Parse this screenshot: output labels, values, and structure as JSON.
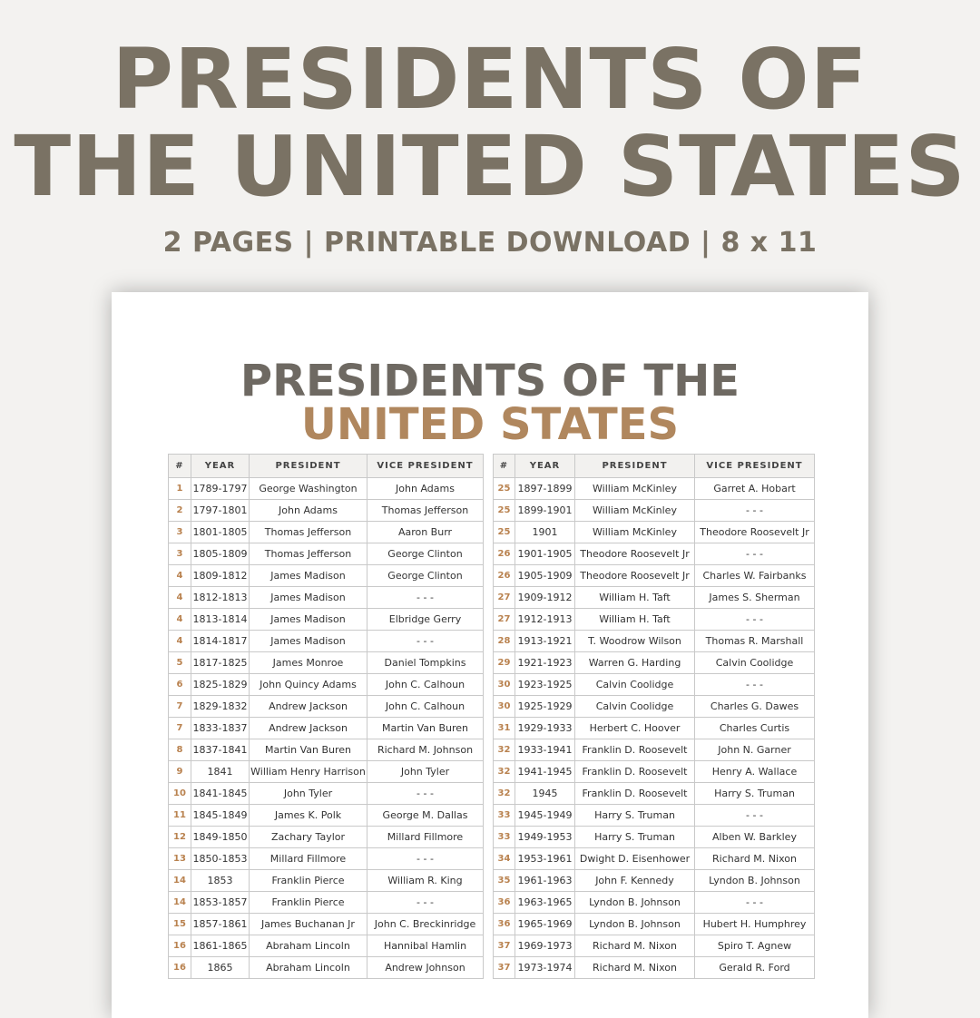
{
  "header": {
    "title_line1": "PRESIDENTS OF",
    "title_line2": "THE UNITED STATES",
    "subtitle": "2 PAGES | PRINTABLE DOWNLOAD | 8 x 11"
  },
  "document": {
    "title_line1": "PRESIDENTS OF THE",
    "title_line2": "UNITED STATES",
    "tables": [
      {
        "columns": [
          "#",
          "YEAR",
          "PRESIDENT",
          "VICE PRESIDENT"
        ],
        "rows": [
          [
            "1",
            "1789-1797",
            "George Washington",
            "John Adams"
          ],
          [
            "2",
            "1797-1801",
            "John Adams",
            "Thomas Jefferson"
          ],
          [
            "3",
            "1801-1805",
            "Thomas Jefferson",
            "Aaron Burr"
          ],
          [
            "3",
            "1805-1809",
            "Thomas Jefferson",
            "George Clinton"
          ],
          [
            "4",
            "1809-1812",
            "James Madison",
            "George Clinton"
          ],
          [
            "4",
            "1812-1813",
            "James Madison",
            "- - -"
          ],
          [
            "4",
            "1813-1814",
            "James Madison",
            "Elbridge Gerry"
          ],
          [
            "4",
            "1814-1817",
            "James Madison",
            "- - -"
          ],
          [
            "5",
            "1817-1825",
            "James Monroe",
            "Daniel Tompkins"
          ],
          [
            "6",
            "1825-1829",
            "John Quincy Adams",
            "John C. Calhoun"
          ],
          [
            "7",
            "1829-1832",
            "Andrew Jackson",
            "John C. Calhoun"
          ],
          [
            "7",
            "1833-1837",
            "Andrew Jackson",
            "Martin Van Buren"
          ],
          [
            "8",
            "1837-1841",
            "Martin Van Buren",
            "Richard M. Johnson"
          ],
          [
            "9",
            "1841",
            "William Henry Harrison",
            "John Tyler"
          ],
          [
            "10",
            "1841-1845",
            "John Tyler",
            "- - -"
          ],
          [
            "11",
            "1845-1849",
            "James K. Polk",
            "George M. Dallas"
          ],
          [
            "12",
            "1849-1850",
            "Zachary Taylor",
            "Millard Fillmore"
          ],
          [
            "13",
            "1850-1853",
            "Millard Fillmore",
            "- - -"
          ],
          [
            "14",
            "1853",
            "Franklin Pierce",
            "William R. King"
          ],
          [
            "14",
            "1853-1857",
            "Franklin Pierce",
            "- - -"
          ],
          [
            "15",
            "1857-1861",
            "James Buchanan Jr",
            "John C. Breckinridge"
          ],
          [
            "16",
            "1861-1865",
            "Abraham Lincoln",
            "Hannibal Hamlin"
          ],
          [
            "16",
            "1865",
            "Abraham Lincoln",
            "Andrew Johnson"
          ]
        ]
      },
      {
        "columns": [
          "#",
          "YEAR",
          "PRESIDENT",
          "VICE PRESIDENT"
        ],
        "rows": [
          [
            "25",
            "1897-1899",
            "William McKinley",
            "Garret A. Hobart"
          ],
          [
            "25",
            "1899-1901",
            "William McKinley",
            "- - -"
          ],
          [
            "25",
            "1901",
            "William McKinley",
            "Theodore Roosevelt Jr"
          ],
          [
            "26",
            "1901-1905",
            "Theodore Roosevelt Jr",
            "- - -"
          ],
          [
            "26",
            "1905-1909",
            "Theodore Roosevelt Jr",
            "Charles W. Fairbanks"
          ],
          [
            "27",
            "1909-1912",
            "William H. Taft",
            "James S. Sherman"
          ],
          [
            "27",
            "1912-1913",
            "William H. Taft",
            "- - -"
          ],
          [
            "28",
            "1913-1921",
            "T. Woodrow Wilson",
            "Thomas R. Marshall"
          ],
          [
            "29",
            "1921-1923",
            "Warren G. Harding",
            "Calvin Coolidge"
          ],
          [
            "30",
            "1923-1925",
            "Calvin Coolidge",
            "- - -"
          ],
          [
            "30",
            "1925-1929",
            "Calvin Coolidge",
            "Charles G. Dawes"
          ],
          [
            "31",
            "1929-1933",
            "Herbert C. Hoover",
            "Charles Curtis"
          ],
          [
            "32",
            "1933-1941",
            "Franklin D. Roosevelt",
            "John N. Garner"
          ],
          [
            "32",
            "1941-1945",
            "Franklin D. Roosevelt",
            "Henry A. Wallace"
          ],
          [
            "32",
            "1945",
            "Franklin D. Roosevelt",
            "Harry S. Truman"
          ],
          [
            "33",
            "1945-1949",
            "Harry S. Truman",
            "- - -"
          ],
          [
            "33",
            "1949-1953",
            "Harry S. Truman",
            "Alben W. Barkley"
          ],
          [
            "34",
            "1953-1961",
            "Dwight D. Eisenhower",
            "Richard M. Nixon"
          ],
          [
            "35",
            "1961-1963",
            "John F. Kennedy",
            "Lyndon B. Johnson"
          ],
          [
            "36",
            "1963-1965",
            "Lyndon B. Johnson",
            "- - -"
          ],
          [
            "36",
            "1965-1969",
            "Lyndon B. Johnson",
            "Hubert H. Humphrey"
          ],
          [
            "37",
            "1969-1973",
            "Richard M. Nixon",
            "Spiro T. Agnew"
          ],
          [
            "37",
            "1973-1974",
            "Richard M. Nixon",
            "Gerald R. Ford"
          ]
        ]
      }
    ]
  }
}
